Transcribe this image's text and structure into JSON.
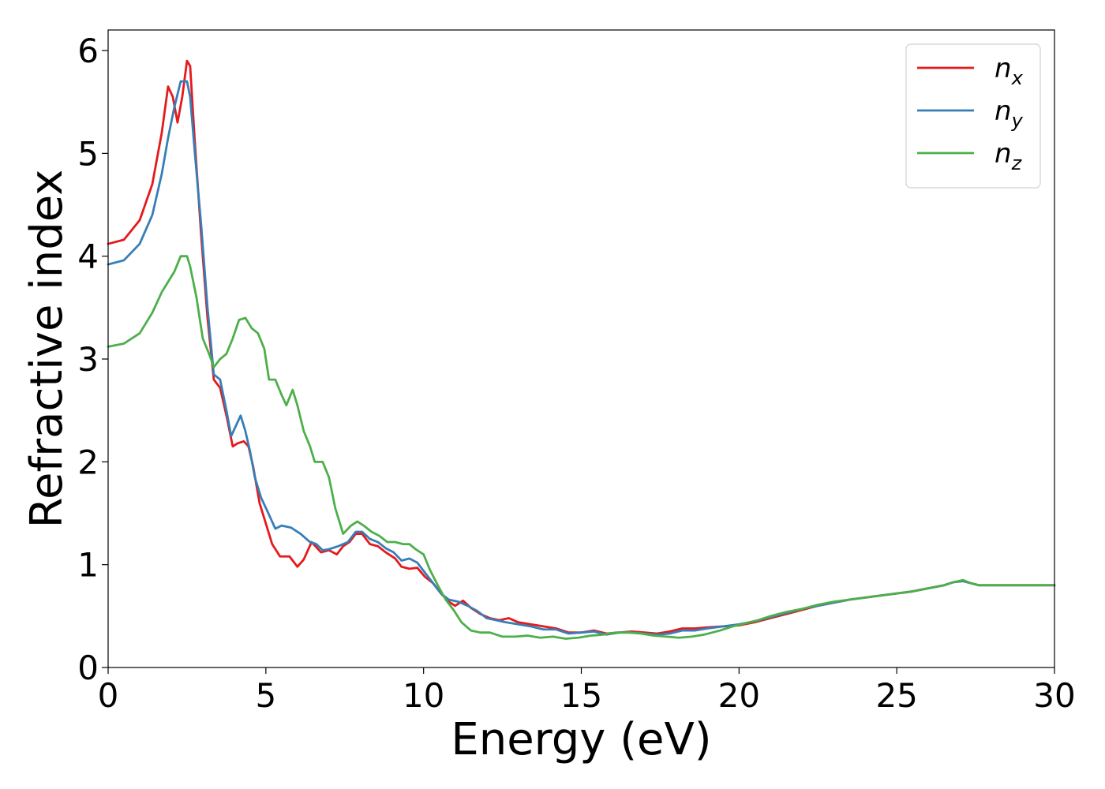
{
  "chart_data": {
    "type": "line",
    "xlabel": "Energy (eV)",
    "ylabel": "Refractive index",
    "xlim": [
      0,
      30
    ],
    "ylim": [
      0,
      6.2
    ],
    "x_ticks": [
      "0",
      "5",
      "10",
      "15",
      "20",
      "25",
      "30"
    ],
    "y_ticks": [
      "0",
      "1",
      "2",
      "3",
      "4",
      "5",
      "6"
    ],
    "grid": false,
    "legend_position": "top-right",
    "series": [
      {
        "name": "n_x",
        "label_base": "n",
        "label_sub": "x",
        "color": "#e41a1c",
        "points": [
          [
            0,
            4.12
          ],
          [
            0.5,
            4.16
          ],
          [
            1.0,
            4.35
          ],
          [
            1.4,
            4.7
          ],
          [
            1.7,
            5.2
          ],
          [
            1.9,
            5.65
          ],
          [
            2.05,
            5.55
          ],
          [
            2.2,
            5.3
          ],
          [
            2.35,
            5.55
          ],
          [
            2.5,
            5.9
          ],
          [
            2.6,
            5.85
          ],
          [
            2.75,
            5.1
          ],
          [
            2.95,
            4.2
          ],
          [
            3.15,
            3.4
          ],
          [
            3.35,
            2.8
          ],
          [
            3.55,
            2.72
          ],
          [
            3.75,
            2.45
          ],
          [
            3.95,
            2.15
          ],
          [
            4.1,
            2.18
          ],
          [
            4.3,
            2.2
          ],
          [
            4.45,
            2.15
          ],
          [
            4.6,
            1.95
          ],
          [
            4.8,
            1.6
          ],
          [
            5.0,
            1.4
          ],
          [
            5.2,
            1.2
          ],
          [
            5.45,
            1.08
          ],
          [
            5.75,
            1.08
          ],
          [
            6.0,
            0.98
          ],
          [
            6.2,
            1.05
          ],
          [
            6.45,
            1.22
          ],
          [
            6.75,
            1.12
          ],
          [
            7.0,
            1.14
          ],
          [
            7.25,
            1.1
          ],
          [
            7.45,
            1.18
          ],
          [
            7.65,
            1.22
          ],
          [
            7.85,
            1.3
          ],
          [
            8.05,
            1.3
          ],
          [
            8.3,
            1.2
          ],
          [
            8.55,
            1.18
          ],
          [
            8.8,
            1.12
          ],
          [
            9.1,
            1.06
          ],
          [
            9.3,
            0.98
          ],
          [
            9.55,
            0.96
          ],
          [
            9.8,
            0.97
          ],
          [
            10.05,
            0.88
          ],
          [
            10.3,
            0.82
          ],
          [
            10.55,
            0.72
          ],
          [
            10.8,
            0.64
          ],
          [
            11.0,
            0.6
          ],
          [
            11.25,
            0.65
          ],
          [
            11.5,
            0.58
          ],
          [
            11.8,
            0.52
          ],
          [
            12.1,
            0.48
          ],
          [
            12.4,
            0.46
          ],
          [
            12.7,
            0.48
          ],
          [
            13.0,
            0.44
          ],
          [
            13.4,
            0.42
          ],
          [
            13.8,
            0.4
          ],
          [
            14.2,
            0.38
          ],
          [
            14.6,
            0.34
          ],
          [
            15.0,
            0.34
          ],
          [
            15.4,
            0.36
          ],
          [
            15.8,
            0.33
          ],
          [
            16.2,
            0.34
          ],
          [
            16.6,
            0.35
          ],
          [
            17.0,
            0.34
          ],
          [
            17.4,
            0.33
          ],
          [
            17.8,
            0.35
          ],
          [
            18.2,
            0.38
          ],
          [
            18.6,
            0.38
          ],
          [
            19.0,
            0.39
          ],
          [
            19.5,
            0.4
          ],
          [
            20.0,
            0.41
          ],
          [
            20.5,
            0.44
          ],
          [
            21.0,
            0.48
          ],
          [
            21.5,
            0.52
          ],
          [
            22.0,
            0.56
          ],
          [
            22.5,
            0.6
          ],
          [
            23.0,
            0.63
          ],
          [
            23.5,
            0.66
          ],
          [
            24.0,
            0.68
          ],
          [
            24.5,
            0.7
          ],
          [
            25.0,
            0.72
          ],
          [
            25.5,
            0.74
          ],
          [
            26.0,
            0.77
          ],
          [
            26.5,
            0.8
          ],
          [
            26.8,
            0.83
          ],
          [
            27.1,
            0.84
          ],
          [
            27.35,
            0.82
          ],
          [
            27.6,
            0.8
          ],
          [
            28.0,
            0.8
          ],
          [
            28.5,
            0.8
          ],
          [
            29.0,
            0.8
          ],
          [
            29.5,
            0.8
          ],
          [
            30.0,
            0.8
          ]
        ]
      },
      {
        "name": "n_y",
        "label_base": "n",
        "label_sub": "y",
        "color": "#377eb8",
        "points": [
          [
            0,
            3.92
          ],
          [
            0.5,
            3.96
          ],
          [
            1.0,
            4.12
          ],
          [
            1.4,
            4.4
          ],
          [
            1.7,
            4.8
          ],
          [
            1.9,
            5.15
          ],
          [
            2.1,
            5.45
          ],
          [
            2.3,
            5.7
          ],
          [
            2.5,
            5.7
          ],
          [
            2.6,
            5.55
          ],
          [
            2.75,
            5.0
          ],
          [
            2.95,
            4.3
          ],
          [
            3.15,
            3.5
          ],
          [
            3.35,
            2.85
          ],
          [
            3.55,
            2.8
          ],
          [
            3.75,
            2.5
          ],
          [
            3.9,
            2.25
          ],
          [
            4.05,
            2.35
          ],
          [
            4.2,
            2.45
          ],
          [
            4.35,
            2.3
          ],
          [
            4.5,
            2.1
          ],
          [
            4.65,
            1.85
          ],
          [
            4.85,
            1.65
          ],
          [
            5.05,
            1.52
          ],
          [
            5.3,
            1.35
          ],
          [
            5.5,
            1.38
          ],
          [
            5.8,
            1.36
          ],
          [
            6.1,
            1.3
          ],
          [
            6.4,
            1.22
          ],
          [
            6.6,
            1.2
          ],
          [
            6.8,
            1.14
          ],
          [
            7.0,
            1.15
          ],
          [
            7.3,
            1.18
          ],
          [
            7.6,
            1.22
          ],
          [
            7.85,
            1.32
          ],
          [
            8.05,
            1.32
          ],
          [
            8.3,
            1.25
          ],
          [
            8.55,
            1.22
          ],
          [
            8.8,
            1.16
          ],
          [
            9.05,
            1.12
          ],
          [
            9.3,
            1.04
          ],
          [
            9.55,
            1.06
          ],
          [
            9.8,
            1.02
          ],
          [
            10.05,
            0.92
          ],
          [
            10.3,
            0.82
          ],
          [
            10.55,
            0.72
          ],
          [
            10.8,
            0.66
          ],
          [
            11.1,
            0.64
          ],
          [
            11.4,
            0.6
          ],
          [
            11.7,
            0.55
          ],
          [
            12.0,
            0.48
          ],
          [
            12.3,
            0.46
          ],
          [
            12.6,
            0.44
          ],
          [
            13.0,
            0.42
          ],
          [
            13.4,
            0.4
          ],
          [
            13.8,
            0.37
          ],
          [
            14.2,
            0.37
          ],
          [
            14.6,
            0.33
          ],
          [
            15.0,
            0.34
          ],
          [
            15.4,
            0.35
          ],
          [
            15.8,
            0.32
          ],
          [
            16.2,
            0.34
          ],
          [
            16.6,
            0.34
          ],
          [
            17.0,
            0.33
          ],
          [
            17.4,
            0.32
          ],
          [
            17.8,
            0.33
          ],
          [
            18.2,
            0.36
          ],
          [
            18.6,
            0.36
          ],
          [
            19.0,
            0.38
          ],
          [
            19.5,
            0.4
          ],
          [
            20.0,
            0.42
          ],
          [
            20.5,
            0.45
          ],
          [
            21.0,
            0.49
          ],
          [
            21.5,
            0.53
          ],
          [
            22.0,
            0.57
          ],
          [
            22.5,
            0.6
          ],
          [
            23.0,
            0.63
          ],
          [
            23.5,
            0.66
          ],
          [
            24.0,
            0.68
          ],
          [
            24.5,
            0.7
          ],
          [
            25.0,
            0.72
          ],
          [
            25.5,
            0.74
          ],
          [
            26.0,
            0.77
          ],
          [
            26.5,
            0.8
          ],
          [
            26.8,
            0.83
          ],
          [
            27.1,
            0.84
          ],
          [
            27.35,
            0.82
          ],
          [
            27.6,
            0.8
          ],
          [
            28.0,
            0.8
          ],
          [
            28.5,
            0.8
          ],
          [
            29.0,
            0.8
          ],
          [
            29.5,
            0.8
          ],
          [
            30.0,
            0.8
          ]
        ]
      },
      {
        "name": "n_z",
        "label_base": "n",
        "label_sub": "z",
        "color": "#4daf4a",
        "points": [
          [
            0,
            3.12
          ],
          [
            0.5,
            3.15
          ],
          [
            1.0,
            3.25
          ],
          [
            1.4,
            3.45
          ],
          [
            1.7,
            3.65
          ],
          [
            1.9,
            3.75
          ],
          [
            2.1,
            3.85
          ],
          [
            2.3,
            4.0
          ],
          [
            2.5,
            4.0
          ],
          [
            2.6,
            3.9
          ],
          [
            2.8,
            3.6
          ],
          [
            3.0,
            3.2
          ],
          [
            3.2,
            3.05
          ],
          [
            3.35,
            2.92
          ],
          [
            3.55,
            3.0
          ],
          [
            3.75,
            3.05
          ],
          [
            3.95,
            3.2
          ],
          [
            4.15,
            3.38
          ],
          [
            4.35,
            3.4
          ],
          [
            4.55,
            3.3
          ],
          [
            4.75,
            3.25
          ],
          [
            4.95,
            3.1
          ],
          [
            5.1,
            2.8
          ],
          [
            5.3,
            2.8
          ],
          [
            5.5,
            2.65
          ],
          [
            5.65,
            2.55
          ],
          [
            5.85,
            2.7
          ],
          [
            6.0,
            2.55
          ],
          [
            6.2,
            2.3
          ],
          [
            6.4,
            2.15
          ],
          [
            6.55,
            2.0
          ],
          [
            6.8,
            2.0
          ],
          [
            7.0,
            1.85
          ],
          [
            7.2,
            1.55
          ],
          [
            7.45,
            1.3
          ],
          [
            7.7,
            1.38
          ],
          [
            7.9,
            1.42
          ],
          [
            8.1,
            1.38
          ],
          [
            8.35,
            1.32
          ],
          [
            8.6,
            1.28
          ],
          [
            8.85,
            1.22
          ],
          [
            9.1,
            1.22
          ],
          [
            9.35,
            1.2
          ],
          [
            9.55,
            1.2
          ],
          [
            9.75,
            1.15
          ],
          [
            10.0,
            1.1
          ],
          [
            10.2,
            0.95
          ],
          [
            10.45,
            0.8
          ],
          [
            10.7,
            0.66
          ],
          [
            10.95,
            0.56
          ],
          [
            11.2,
            0.44
          ],
          [
            11.5,
            0.36
          ],
          [
            11.8,
            0.34
          ],
          [
            12.1,
            0.34
          ],
          [
            12.5,
            0.3
          ],
          [
            12.9,
            0.3
          ],
          [
            13.3,
            0.31
          ],
          [
            13.7,
            0.29
          ],
          [
            14.1,
            0.3
          ],
          [
            14.5,
            0.28
          ],
          [
            14.9,
            0.29
          ],
          [
            15.3,
            0.31
          ],
          [
            15.7,
            0.32
          ],
          [
            16.1,
            0.34
          ],
          [
            16.5,
            0.34
          ],
          [
            16.9,
            0.33
          ],
          [
            17.3,
            0.31
          ],
          [
            17.7,
            0.3
          ],
          [
            18.1,
            0.29
          ],
          [
            18.5,
            0.3
          ],
          [
            18.9,
            0.32
          ],
          [
            19.4,
            0.36
          ],
          [
            19.8,
            0.4
          ],
          [
            20.2,
            0.43
          ],
          [
            20.6,
            0.46
          ],
          [
            21.0,
            0.5
          ],
          [
            21.5,
            0.54
          ],
          [
            22.0,
            0.57
          ],
          [
            22.5,
            0.61
          ],
          [
            23.0,
            0.64
          ],
          [
            23.5,
            0.66
          ],
          [
            24.0,
            0.68
          ],
          [
            24.5,
            0.7
          ],
          [
            25.0,
            0.72
          ],
          [
            25.5,
            0.74
          ],
          [
            26.0,
            0.77
          ],
          [
            26.5,
            0.8
          ],
          [
            26.8,
            0.83
          ],
          [
            27.1,
            0.85
          ],
          [
            27.35,
            0.82
          ],
          [
            27.6,
            0.8
          ],
          [
            28.0,
            0.8
          ],
          [
            28.5,
            0.8
          ],
          [
            29.0,
            0.8
          ],
          [
            29.5,
            0.8
          ],
          [
            30.0,
            0.8
          ]
        ]
      }
    ]
  }
}
